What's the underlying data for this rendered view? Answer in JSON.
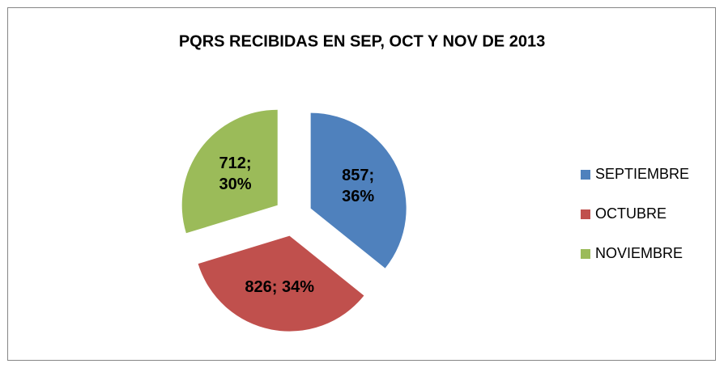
{
  "chart_data": {
    "type": "pie",
    "title": "PQRS RECIBIDAS EN SEP, OCT Y NOV DE 2013",
    "categories": [
      "SEPTIEMBRE",
      "OCTUBRE",
      "NOVIEMBRE"
    ],
    "values": [
      857,
      826,
      712
    ],
    "value_labels": [
      "857; 36%",
      "826; 34%",
      "712; 30%"
    ],
    "colors": [
      "#4f81bd",
      "#c0504d",
      "#9bbb59"
    ],
    "legend": "right"
  }
}
